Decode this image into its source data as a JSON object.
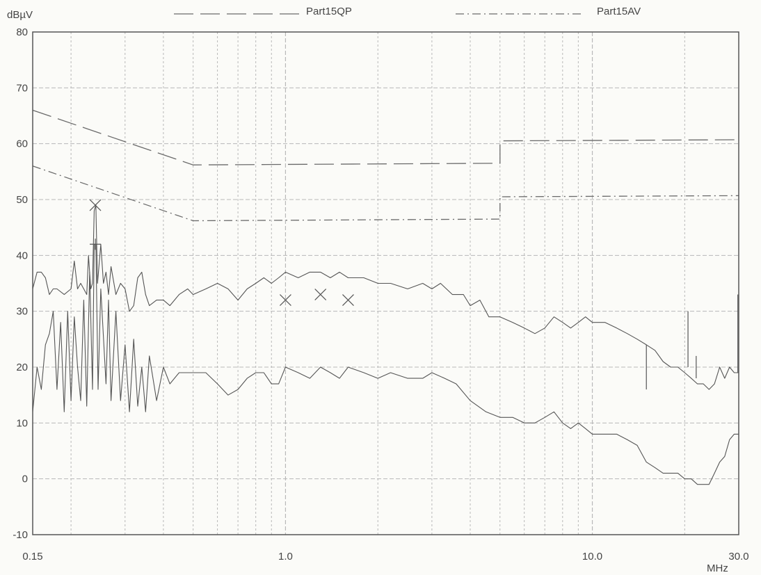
{
  "chart_data": {
    "type": "line",
    "y_unit": "dBµV",
    "x_unit": "MHz",
    "x_scale": "log",
    "xlim": [
      0.15,
      30.0
    ],
    "ylim": [
      -10,
      80
    ],
    "x_tick_labels": [
      {
        "value": 0.15,
        "text": "0.15"
      },
      {
        "value": 1.0,
        "text": "1.0"
      },
      {
        "value": 10.0,
        "text": "10.0"
      },
      {
        "value": 30.0,
        "text": "30.0"
      }
    ],
    "y_tick_labels": [
      "-10",
      "0",
      "10",
      "20",
      "30",
      "40",
      "50",
      "60",
      "70",
      "80"
    ],
    "grid": true,
    "legend": [
      {
        "name": "Part15QP",
        "style": "dashed"
      },
      {
        "name": "Part15AV",
        "style": "dash-dot"
      }
    ],
    "limit_lines": [
      {
        "name": "Part15QP",
        "points": [
          [
            0.15,
            66
          ],
          [
            0.5,
            56.2
          ],
          [
            5.0,
            56.5
          ],
          [
            5.0,
            60.5
          ],
          [
            30.0,
            60.7
          ]
        ]
      },
      {
        "name": "Part15AV",
        "points": [
          [
            0.15,
            56
          ],
          [
            0.5,
            46.2
          ],
          [
            5.0,
            46.5
          ],
          [
            5.0,
            50.5
          ],
          [
            30.0,
            50.7
          ]
        ]
      }
    ],
    "series": [
      {
        "values": [
          [
            0.15,
            34
          ],
          [
            0.155,
            37
          ],
          [
            0.16,
            37
          ],
          [
            0.165,
            36
          ],
          [
            0.17,
            33
          ],
          [
            0.175,
            34
          ],
          [
            0.18,
            34
          ],
          [
            0.19,
            33
          ],
          [
            0.2,
            34
          ],
          [
            0.205,
            39
          ],
          [
            0.21,
            34
          ],
          [
            0.215,
            35
          ],
          [
            0.22,
            34
          ],
          [
            0.225,
            33
          ],
          [
            0.228,
            40
          ],
          [
            0.232,
            34
          ],
          [
            0.235,
            35
          ],
          [
            0.238,
            48
          ],
          [
            0.241,
            49
          ],
          [
            0.244,
            35
          ],
          [
            0.25,
            42
          ],
          [
            0.255,
            35
          ],
          [
            0.26,
            37
          ],
          [
            0.265,
            33
          ],
          [
            0.27,
            38
          ],
          [
            0.28,
            33
          ],
          [
            0.29,
            35
          ],
          [
            0.3,
            34
          ],
          [
            0.31,
            30
          ],
          [
            0.32,
            31
          ],
          [
            0.33,
            36
          ],
          [
            0.34,
            37
          ],
          [
            0.35,
            33
          ],
          [
            0.36,
            31
          ],
          [
            0.38,
            32
          ],
          [
            0.4,
            32
          ],
          [
            0.42,
            31
          ],
          [
            0.45,
            33
          ],
          [
            0.48,
            34
          ],
          [
            0.5,
            33
          ],
          [
            0.55,
            34
          ],
          [
            0.6,
            35
          ],
          [
            0.65,
            34
          ],
          [
            0.7,
            32
          ],
          [
            0.75,
            34
          ],
          [
            0.8,
            35
          ],
          [
            0.85,
            36
          ],
          [
            0.9,
            35
          ],
          [
            0.95,
            36
          ],
          [
            1.0,
            37
          ],
          [
            1.1,
            36
          ],
          [
            1.2,
            37
          ],
          [
            1.3,
            37
          ],
          [
            1.4,
            36
          ],
          [
            1.5,
            37
          ],
          [
            1.6,
            36
          ],
          [
            1.8,
            36
          ],
          [
            2.0,
            35
          ],
          [
            2.2,
            35
          ],
          [
            2.5,
            34
          ],
          [
            2.8,
            35
          ],
          [
            3.0,
            34
          ],
          [
            3.2,
            35
          ],
          [
            3.5,
            33
          ],
          [
            3.8,
            33
          ],
          [
            4.0,
            31
          ],
          [
            4.3,
            32
          ],
          [
            4.6,
            29
          ],
          [
            5.0,
            29
          ],
          [
            5.5,
            28
          ],
          [
            6.0,
            27
          ],
          [
            6.5,
            26
          ],
          [
            7.0,
            27
          ],
          [
            7.5,
            29
          ],
          [
            8.0,
            28
          ],
          [
            8.5,
            27
          ],
          [
            9.0,
            28
          ],
          [
            9.5,
            29
          ],
          [
            10.0,
            28
          ],
          [
            11.0,
            28
          ],
          [
            12.0,
            27
          ],
          [
            13.0,
            26
          ],
          [
            14.0,
            25
          ],
          [
            15.0,
            24
          ],
          [
            16.0,
            23
          ],
          [
            17.0,
            21
          ],
          [
            18.0,
            20
          ],
          [
            19.0,
            20
          ],
          [
            20.0,
            19
          ],
          [
            21.0,
            18
          ],
          [
            22.0,
            17
          ],
          [
            23.0,
            17
          ],
          [
            24.0,
            16
          ],
          [
            25.0,
            17
          ],
          [
            26.0,
            20
          ],
          [
            27.0,
            18
          ],
          [
            28.0,
            20
          ],
          [
            29.0,
            19
          ],
          [
            30.0,
            19
          ]
        ]
      },
      {
        "values": [
          [
            0.15,
            12
          ],
          [
            0.155,
            20
          ],
          [
            0.16,
            16
          ],
          [
            0.165,
            24
          ],
          [
            0.17,
            26
          ],
          [
            0.175,
            30
          ],
          [
            0.18,
            16
          ],
          [
            0.185,
            28
          ],
          [
            0.19,
            12
          ],
          [
            0.195,
            30
          ],
          [
            0.2,
            14
          ],
          [
            0.205,
            29
          ],
          [
            0.21,
            20
          ],
          [
            0.215,
            14
          ],
          [
            0.22,
            32
          ],
          [
            0.225,
            13
          ],
          [
            0.23,
            37
          ],
          [
            0.235,
            16
          ],
          [
            0.238,
            42
          ],
          [
            0.241,
            42
          ],
          [
            0.245,
            16
          ],
          [
            0.25,
            34
          ],
          [
            0.26,
            17
          ],
          [
            0.265,
            32
          ],
          [
            0.27,
            14
          ],
          [
            0.28,
            30
          ],
          [
            0.29,
            14
          ],
          [
            0.3,
            24
          ],
          [
            0.31,
            12
          ],
          [
            0.32,
            25
          ],
          [
            0.33,
            13
          ],
          [
            0.34,
            20
          ],
          [
            0.35,
            12
          ],
          [
            0.36,
            22
          ],
          [
            0.38,
            14
          ],
          [
            0.4,
            20
          ],
          [
            0.42,
            17
          ],
          [
            0.45,
            19
          ],
          [
            0.5,
            19
          ],
          [
            0.55,
            19
          ],
          [
            0.6,
            17
          ],
          [
            0.65,
            15
          ],
          [
            0.7,
            16
          ],
          [
            0.75,
            18
          ],
          [
            0.8,
            19
          ],
          [
            0.85,
            19
          ],
          [
            0.9,
            17
          ],
          [
            0.95,
            17
          ],
          [
            1.0,
            20
          ],
          [
            1.1,
            19
          ],
          [
            1.2,
            18
          ],
          [
            1.3,
            20
          ],
          [
            1.4,
            19
          ],
          [
            1.5,
            18
          ],
          [
            1.6,
            20
          ],
          [
            1.8,
            19
          ],
          [
            2.0,
            18
          ],
          [
            2.2,
            19
          ],
          [
            2.5,
            18
          ],
          [
            2.8,
            18
          ],
          [
            3.0,
            19
          ],
          [
            3.3,
            18
          ],
          [
            3.6,
            17
          ],
          [
            4.0,
            14
          ],
          [
            4.5,
            12
          ],
          [
            5.0,
            11
          ],
          [
            5.5,
            11
          ],
          [
            6.0,
            10
          ],
          [
            6.5,
            10
          ],
          [
            7.0,
            11
          ],
          [
            7.5,
            12
          ],
          [
            8.0,
            10
          ],
          [
            8.5,
            9
          ],
          [
            9.0,
            10
          ],
          [
            9.5,
            9
          ],
          [
            10.0,
            8
          ],
          [
            11.0,
            8
          ],
          [
            12.0,
            8
          ],
          [
            13.0,
            7
          ],
          [
            14.0,
            6
          ],
          [
            15.0,
            3
          ],
          [
            16.0,
            2
          ],
          [
            17.0,
            1
          ],
          [
            18.0,
            1
          ],
          [
            19.0,
            1
          ],
          [
            20.0,
            0
          ],
          [
            21.0,
            0
          ],
          [
            22.0,
            -1
          ],
          [
            23.0,
            -1
          ],
          [
            24.0,
            -1
          ],
          [
            25.0,
            1
          ],
          [
            26.0,
            3
          ],
          [
            27.0,
            4
          ],
          [
            28.0,
            7
          ],
          [
            29.0,
            8
          ],
          [
            30.0,
            8
          ]
        ]
      }
    ],
    "markers": [
      {
        "symbol": "x",
        "x": 0.24,
        "y": 49
      },
      {
        "symbol": "+",
        "x": 0.24,
        "y": 42
      },
      {
        "symbol": "x",
        "x": 1.0,
        "y": 32
      },
      {
        "symbol": "x",
        "x": 1.3,
        "y": 33
      },
      {
        "symbol": "x",
        "x": 1.6,
        "y": 32
      }
    ],
    "spikes": [
      {
        "x": 15.0,
        "from": 24,
        "to": 16
      },
      {
        "x": 20.5,
        "from": 20,
        "to": 30
      },
      {
        "x": 21.8,
        "from": 18,
        "to": 22
      },
      {
        "x": 29.8,
        "from": 19,
        "to": 33
      }
    ]
  },
  "colors": {
    "axis": "#555555",
    "grid": "#b8b8b8",
    "trace": "#555555",
    "limit": "#6a6a6a"
  }
}
